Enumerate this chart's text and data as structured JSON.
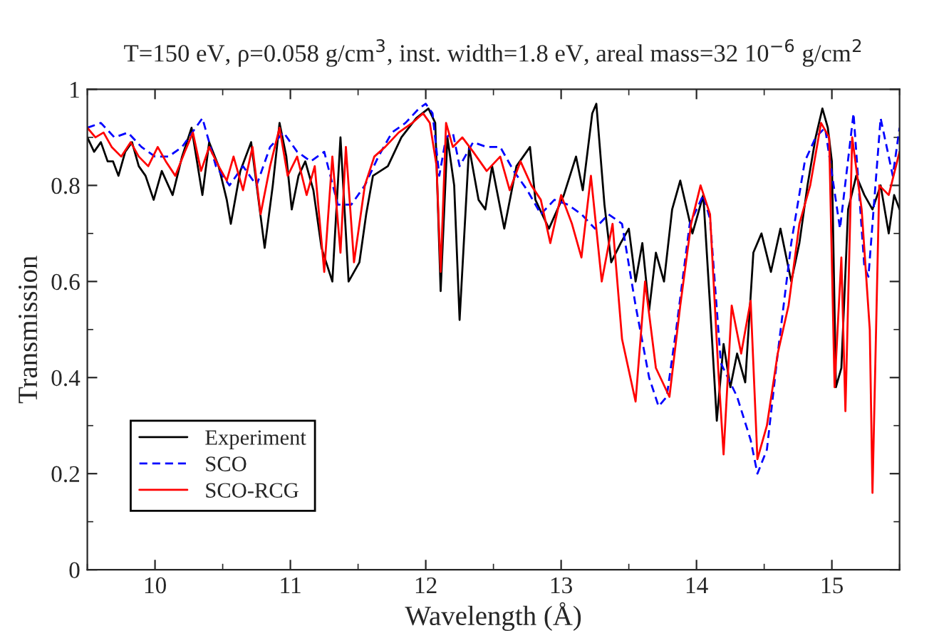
{
  "chart_data": {
    "type": "line",
    "title": "T=150 eV, ρ=0.058 g/cm$^{3}$, inst. width=1.8 eV, areal mass=32 10$^{−6}$ g/cm$^{2}$",
    "xlabel": "Wavelength (Å)",
    "ylabel": "Transmission",
    "xlim": [
      9.5,
      15.5
    ],
    "ylim": [
      0,
      1
    ],
    "xticks": [
      10,
      11,
      12,
      13,
      14,
      15
    ],
    "yticks": [
      0,
      0.2,
      0.4,
      0.6,
      0.8,
      1
    ],
    "grid": false,
    "legend": "bottom left",
    "marker": "none",
    "series": [
      {
        "name": "Experiment",
        "color": "#000000",
        "line_style": "solid",
        "x": [
          9.5,
          9.55,
          9.6,
          9.65,
          9.69,
          9.73,
          9.78,
          9.83,
          9.88,
          9.93,
          9.99,
          10.05,
          10.13,
          10.2,
          10.27,
          10.31,
          10.35,
          10.4,
          10.47,
          10.53,
          10.56,
          10.63,
          10.71,
          10.76,
          10.81,
          10.87,
          10.92,
          10.97,
          11.01,
          11.06,
          11.11,
          11.17,
          11.23,
          11.31,
          11.37,
          11.43,
          11.51,
          11.56,
          11.61,
          11.72,
          11.82,
          11.93,
          12.02,
          12.07,
          12.11,
          12.16,
          12.21,
          12.25,
          12.32,
          12.39,
          12.44,
          12.49,
          12.58,
          12.67,
          12.77,
          12.81,
          12.91,
          13.02,
          13.11,
          13.16,
          13.23,
          13.26,
          13.32,
          13.37,
          13.44,
          13.5,
          13.55,
          13.6,
          13.65,
          13.7,
          13.76,
          13.82,
          13.88,
          13.97,
          14.05,
          14.1,
          14.15,
          14.2,
          14.25,
          14.3,
          14.36,
          14.42,
          14.48,
          14.55,
          14.62,
          14.7,
          14.76,
          14.82,
          14.88,
          14.93,
          14.97,
          15.0,
          15.03,
          15.07,
          15.12,
          15.18,
          15.24,
          15.3,
          15.36,
          15.42,
          15.46,
          15.5
        ],
        "values": [
          0.9,
          0.87,
          0.89,
          0.85,
          0.85,
          0.82,
          0.87,
          0.89,
          0.84,
          0.82,
          0.77,
          0.83,
          0.78,
          0.86,
          0.92,
          0.85,
          0.78,
          0.89,
          0.84,
          0.77,
          0.72,
          0.83,
          0.89,
          0.78,
          0.67,
          0.8,
          0.93,
          0.86,
          0.75,
          0.82,
          0.85,
          0.79,
          0.67,
          0.6,
          0.9,
          0.6,
          0.64,
          0.74,
          0.82,
          0.84,
          0.9,
          0.94,
          0.96,
          0.93,
          0.58,
          0.9,
          0.8,
          0.52,
          0.88,
          0.77,
          0.75,
          0.84,
          0.71,
          0.84,
          0.88,
          0.77,
          0.71,
          0.78,
          0.86,
          0.79,
          0.95,
          0.97,
          0.76,
          0.64,
          0.68,
          0.71,
          0.6,
          0.68,
          0.54,
          0.66,
          0.6,
          0.75,
          0.81,
          0.7,
          0.78,
          0.55,
          0.31,
          0.47,
          0.38,
          0.45,
          0.39,
          0.66,
          0.7,
          0.62,
          0.71,
          0.6,
          0.68,
          0.8,
          0.9,
          0.96,
          0.92,
          0.85,
          0.38,
          0.42,
          0.75,
          0.82,
          0.78,
          0.75,
          0.8,
          0.7,
          0.78,
          0.75
        ]
      },
      {
        "name": "SCO",
        "color": "#0000ff",
        "line_style": "dashed",
        "x": [
          9.5,
          9.6,
          9.7,
          9.8,
          9.9,
          10.0,
          10.1,
          10.2,
          10.3,
          10.35,
          10.45,
          10.55,
          10.65,
          10.75,
          10.85,
          10.95,
          11.05,
          11.15,
          11.25,
          11.35,
          11.45,
          11.55,
          11.65,
          11.75,
          11.85,
          11.95,
          12.0,
          12.05,
          12.1,
          12.15,
          12.2,
          12.25,
          12.35,
          12.45,
          12.55,
          12.65,
          12.75,
          12.85,
          12.95,
          13.05,
          13.15,
          13.25,
          13.35,
          13.45,
          13.55,
          13.65,
          13.72,
          13.78,
          13.85,
          13.95,
          14.05,
          14.1,
          14.18,
          14.3,
          14.4,
          14.45,
          14.52,
          14.6,
          14.7,
          14.8,
          14.88,
          14.95,
          15.06,
          15.16,
          15.24,
          15.27,
          15.36,
          15.45,
          15.5
        ],
        "values": [
          0.92,
          0.93,
          0.9,
          0.91,
          0.88,
          0.86,
          0.86,
          0.88,
          0.92,
          0.94,
          0.84,
          0.8,
          0.84,
          0.8,
          0.88,
          0.91,
          0.87,
          0.85,
          0.87,
          0.76,
          0.76,
          0.8,
          0.86,
          0.91,
          0.93,
          0.96,
          0.97,
          0.95,
          0.82,
          0.9,
          0.91,
          0.84,
          0.89,
          0.88,
          0.88,
          0.83,
          0.79,
          0.74,
          0.77,
          0.76,
          0.74,
          0.71,
          0.74,
          0.72,
          0.55,
          0.4,
          0.34,
          0.36,
          0.5,
          0.72,
          0.78,
          0.73,
          0.43,
          0.36,
          0.27,
          0.2,
          0.25,
          0.45,
          0.68,
          0.85,
          0.9,
          0.92,
          0.71,
          0.95,
          0.63,
          0.61,
          0.94,
          0.82,
          0.92
        ]
      },
      {
        "name": "SCO-RCG",
        "color": "#ff0000",
        "line_style": "solid",
        "x": [
          9.5,
          9.56,
          9.62,
          9.68,
          9.75,
          9.82,
          9.88,
          9.95,
          10.02,
          10.08,
          10.15,
          10.22,
          10.28,
          10.34,
          10.4,
          10.47,
          10.53,
          10.58,
          10.65,
          10.72,
          10.78,
          10.85,
          10.92,
          10.98,
          11.05,
          11.12,
          11.18,
          11.25,
          11.31,
          11.37,
          11.41,
          11.47,
          11.55,
          11.62,
          11.7,
          11.8,
          11.9,
          11.98,
          12.03,
          12.08,
          12.11,
          12.15,
          12.2,
          12.27,
          12.35,
          12.45,
          12.55,
          12.62,
          12.7,
          12.78,
          12.85,
          12.92,
          13.0,
          13.08,
          13.15,
          13.22,
          13.3,
          13.38,
          13.45,
          13.55,
          13.62,
          13.7,
          13.8,
          13.88,
          13.96,
          14.03,
          14.1,
          14.16,
          14.2,
          14.26,
          14.33,
          14.4,
          14.45,
          14.52,
          14.6,
          14.68,
          14.76,
          14.84,
          14.92,
          14.98,
          15.02,
          15.07,
          15.1,
          15.15,
          15.22,
          15.28,
          15.3,
          15.35,
          15.42,
          15.5
        ],
        "values": [
          0.92,
          0.9,
          0.91,
          0.88,
          0.86,
          0.89,
          0.86,
          0.84,
          0.88,
          0.85,
          0.82,
          0.87,
          0.91,
          0.83,
          0.88,
          0.84,
          0.81,
          0.86,
          0.79,
          0.88,
          0.74,
          0.84,
          0.92,
          0.82,
          0.86,
          0.78,
          0.84,
          0.62,
          0.86,
          0.66,
          0.88,
          0.64,
          0.8,
          0.86,
          0.88,
          0.91,
          0.93,
          0.95,
          0.93,
          0.84,
          0.62,
          0.93,
          0.88,
          0.9,
          0.87,
          0.83,
          0.86,
          0.79,
          0.85,
          0.8,
          0.77,
          0.68,
          0.78,
          0.72,
          0.65,
          0.82,
          0.6,
          0.72,
          0.48,
          0.35,
          0.6,
          0.42,
          0.36,
          0.55,
          0.72,
          0.8,
          0.74,
          0.42,
          0.24,
          0.55,
          0.45,
          0.56,
          0.23,
          0.3,
          0.45,
          0.55,
          0.72,
          0.8,
          0.93,
          0.9,
          0.38,
          0.65,
          0.33,
          0.9,
          0.75,
          0.5,
          0.16,
          0.8,
          0.78,
          0.87
        ]
      }
    ]
  }
}
